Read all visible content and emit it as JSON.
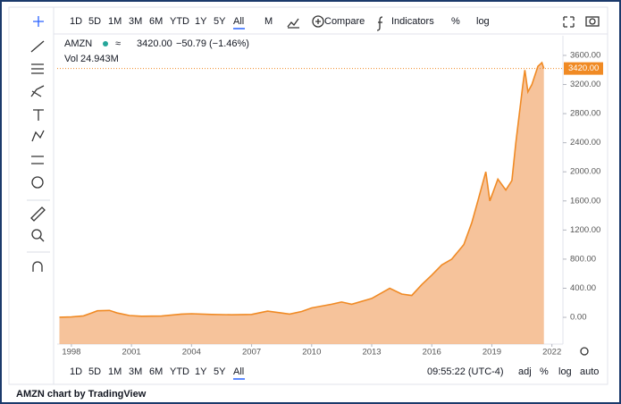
{
  "toolbar": {
    "ranges": [
      "1D",
      "5D",
      "1M",
      "3M",
      "6M",
      "YTD",
      "1Y",
      "5Y",
      "All"
    ],
    "interval": "M",
    "compare": "Compare",
    "indicators": "Indicators",
    "percent": "%",
    "log": "log"
  },
  "header": {
    "symbol": "AMZN",
    "price": "3420.00",
    "change": "−50.79 (−1.46%)",
    "vol_label": "Vol",
    "vol": "24.943M"
  },
  "bottom": {
    "ranges": [
      "1D",
      "5D",
      "1M",
      "3M",
      "6M",
      "YTD",
      "1Y",
      "5Y",
      "All"
    ],
    "time": "09:55:22 (UTC-4)",
    "adj": "adj",
    "percent": "%",
    "log": "log",
    "auto": "auto"
  },
  "footer": "AMZN chart by TradingView",
  "chart_data": {
    "type": "area",
    "color": "#f08a24",
    "fill": "#f5b98a",
    "x": [
      1997.4,
      1998.0,
      1998.6,
      1999.0,
      1999.3,
      1999.9,
      2000.3,
      2000.9,
      2001.5,
      2002.5,
      2003.5,
      2004.0,
      2005.0,
      2006.0,
      2007.0,
      2007.8,
      2008.5,
      2008.9,
      2009.5,
      2010.0,
      2011.0,
      2011.5,
      2012.0,
      2013.0,
      2013.9,
      2014.5,
      2015.0,
      2015.5,
      2016.0,
      2016.5,
      2017.0,
      2017.6,
      2018.0,
      2018.3,
      2018.7,
      2018.9,
      2019.3,
      2019.7,
      2020.0,
      2020.2,
      2020.55,
      2020.65,
      2020.8,
      2021.0,
      2021.3,
      2021.5,
      2021.6
    ],
    "values": [
      2,
      5,
      20,
      60,
      90,
      95,
      60,
      25,
      15,
      18,
      45,
      50,
      40,
      35,
      40,
      85,
      60,
      45,
      80,
      130,
      180,
      210,
      180,
      260,
      400,
      320,
      300,
      450,
      580,
      720,
      800,
      1000,
      1300,
      1600,
      2000,
      1600,
      1900,
      1750,
      1880,
      2400,
      3200,
      3400,
      3100,
      3200,
      3450,
      3500,
      3420
    ],
    "xlim": [
      1997.29,
      2022.55
    ],
    "xticks": [
      1998,
      2001,
      2004,
      2007,
      2010,
      2013,
      2016,
      2019,
      2022
    ],
    "ylim": [
      -368,
      3870
    ],
    "yticks": [
      {
        "value": 0,
        "label": "0.00"
      },
      {
        "value": 400,
        "label": "400.00"
      },
      {
        "value": 800,
        "label": "800.00"
      },
      {
        "value": 1200,
        "label": "1200.00"
      },
      {
        "value": 1600,
        "label": "1600.00"
      },
      {
        "value": 2000,
        "label": "2000.00"
      },
      {
        "value": 2400,
        "label": "2400.00"
      },
      {
        "value": 2800,
        "label": "2800.00"
      },
      {
        "value": 3200,
        "label": "3200.00"
      },
      {
        "value": 3600,
        "label": "3600.00"
      }
    ],
    "last_price": {
      "value": 3420,
      "label": "3420.00"
    }
  }
}
